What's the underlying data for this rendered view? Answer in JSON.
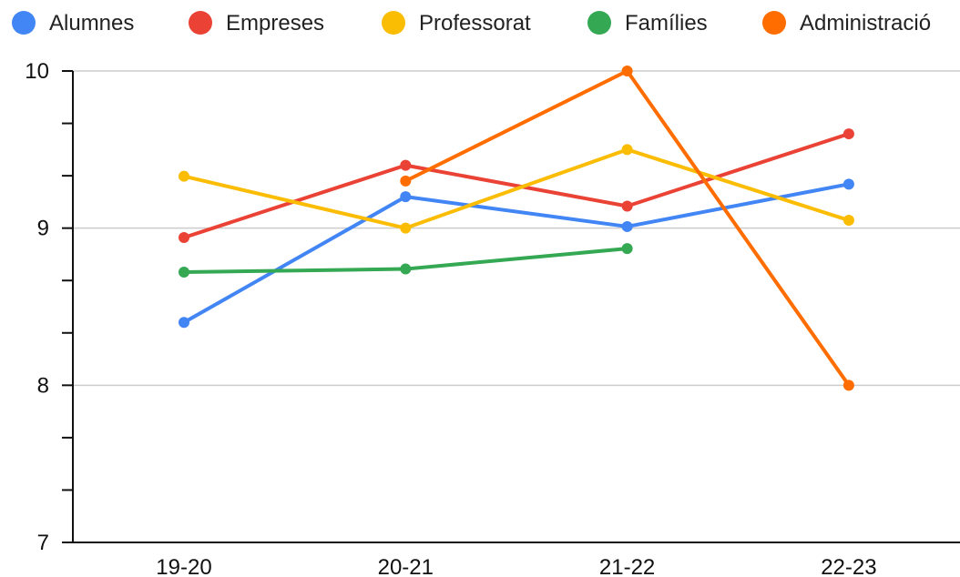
{
  "chart_data": {
    "type": "line",
    "categories": [
      "19-20",
      "20-21",
      "21-22",
      "22-23"
    ],
    "series": [
      {
        "name": "Alumnes",
        "color": "#4285f4",
        "values": [
          8.4,
          9.2,
          9.01,
          9.28
        ]
      },
      {
        "name": "Empreses",
        "color": "#ea4335",
        "values": [
          8.94,
          9.4,
          9.14,
          9.6
        ]
      },
      {
        "name": "Professorat",
        "color": "#fbbc04",
        "values": [
          9.33,
          9.0,
          9.5,
          9.05
        ]
      },
      {
        "name": "Famílies",
        "color": "#34a853",
        "values": [
          8.72,
          8.74,
          8.87,
          null
        ]
      },
      {
        "name": "Administració",
        "color": "#ff6d01",
        "values": [
          null,
          9.3,
          10.0,
          8.0
        ]
      }
    ],
    "y_ticks": [
      "7",
      "8",
      "9",
      "10"
    ],
    "ylim": [
      7,
      10
    ],
    "grid": true,
    "legend_position": "top",
    "title": "",
    "xlabel": "",
    "ylabel": ""
  }
}
